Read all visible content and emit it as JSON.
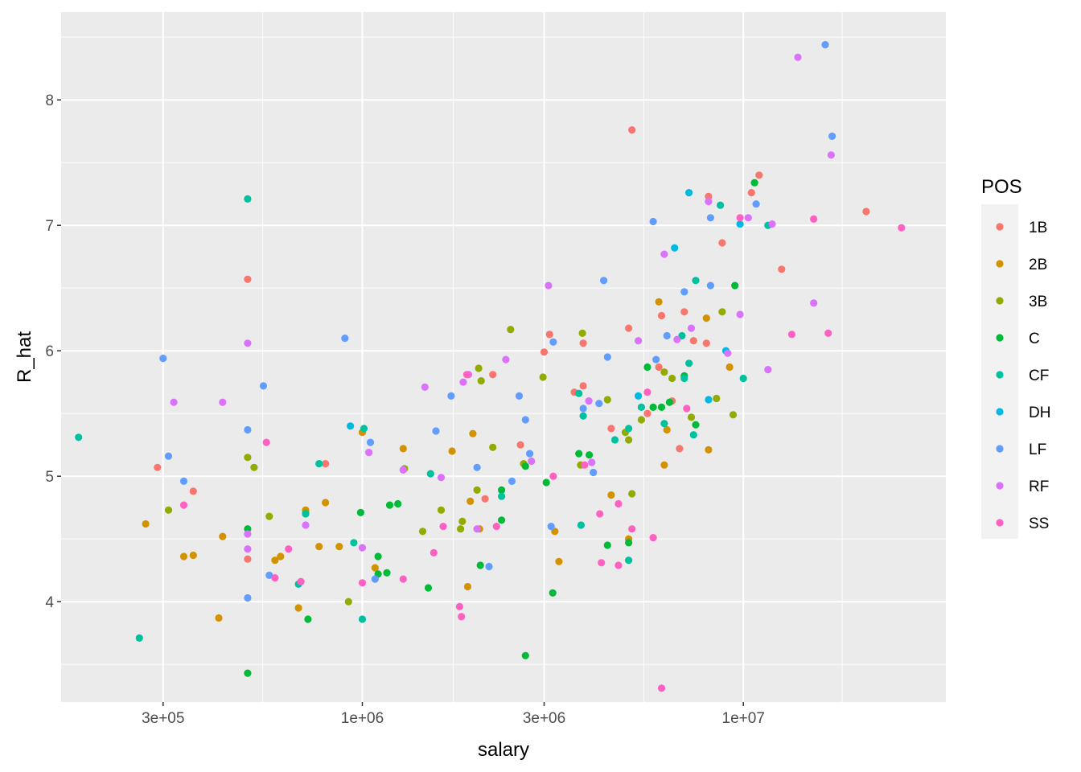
{
  "chart_data": {
    "type": "scatter",
    "title": "",
    "xlabel": "salary",
    "ylabel": "R_hat",
    "x_scale": "log10",
    "xlim": [
      162000,
      34000000
    ],
    "ylim": [
      3.2,
      8.7
    ],
    "x_ticks": [
      {
        "value": 300000,
        "label": "3e+05"
      },
      {
        "value": 1000000,
        "label": "1e+06"
      },
      {
        "value": 3000000,
        "label": "3e+06"
      },
      {
        "value": 10000000,
        "label": "1e+07"
      }
    ],
    "y_ticks": [
      {
        "value": 4,
        "label": "4"
      },
      {
        "value": 5,
        "label": "5"
      },
      {
        "value": 6,
        "label": "6"
      },
      {
        "value": 7,
        "label": "7"
      },
      {
        "value": 8,
        "label": "8"
      }
    ],
    "grid": true,
    "legend_title": "POS",
    "legend_position": "right",
    "series": [
      {
        "name": "1B",
        "color": "#F8766D",
        "points": [
          [
            290000,
            5.07
          ],
          [
            360000,
            4.88
          ],
          [
            500000,
            6.57
          ],
          [
            500000,
            4.34
          ],
          [
            800000,
            5.1
          ],
          [
            2100000,
            4.82
          ],
          [
            2200000,
            5.81
          ],
          [
            2600000,
            5.25
          ],
          [
            3000000,
            5.99
          ],
          [
            3100000,
            6.13
          ],
          [
            3600000,
            5.67
          ],
          [
            3800000,
            5.72
          ],
          [
            3800000,
            6.06
          ],
          [
            4500000,
            5.38
          ],
          [
            5000000,
            6.18
          ],
          [
            5100000,
            7.76
          ],
          [
            5600000,
            5.5
          ],
          [
            6000000,
            5.87
          ],
          [
            6100000,
            6.28
          ],
          [
            6500000,
            5.6
          ],
          [
            6800000,
            5.22
          ],
          [
            7000000,
            6.31
          ],
          [
            7400000,
            6.08
          ],
          [
            8000000,
            6.06
          ],
          [
            8100000,
            7.23
          ],
          [
            8800000,
            6.86
          ],
          [
            10500000,
            7.26
          ],
          [
            11000000,
            7.4
          ],
          [
            12600000,
            6.65
          ],
          [
            21000000,
            7.11
          ]
        ]
      },
      {
        "name": "2B",
        "color": "#D39200",
        "points": [
          [
            270000,
            4.62
          ],
          [
            340000,
            4.36
          ],
          [
            360000,
            4.37
          ],
          [
            420000,
            3.87
          ],
          [
            430000,
            4.52
          ],
          [
            590000,
            4.33
          ],
          [
            610000,
            4.36
          ],
          [
            680000,
            3.95
          ],
          [
            710000,
            4.73
          ],
          [
            770000,
            4.44
          ],
          [
            800000,
            4.79
          ],
          [
            870000,
            4.44
          ],
          [
            1000000,
            5.35
          ],
          [
            1080000,
            4.27
          ],
          [
            1280000,
            5.22
          ],
          [
            1720000,
            5.2
          ],
          [
            1890000,
            4.12
          ],
          [
            1920000,
            4.8
          ],
          [
            1950000,
            5.34
          ],
          [
            2030000,
            4.58
          ],
          [
            3200000,
            4.56
          ],
          [
            3280000,
            4.32
          ],
          [
            4500000,
            4.85
          ],
          [
            5000000,
            4.5
          ],
          [
            6000000,
            6.39
          ],
          [
            6200000,
            5.09
          ],
          [
            6300000,
            5.37
          ],
          [
            8000000,
            6.26
          ],
          [
            8100000,
            5.21
          ],
          [
            9200000,
            5.87
          ]
        ]
      },
      {
        "name": "3B",
        "color": "#93AA00",
        "points": [
          [
            310000,
            4.73
          ],
          [
            500000,
            5.15
          ],
          [
            520000,
            5.07
          ],
          [
            570000,
            4.68
          ],
          [
            710000,
            4.71
          ],
          [
            920000,
            4.0
          ],
          [
            1290000,
            5.06
          ],
          [
            1440000,
            4.56
          ],
          [
            1610000,
            4.73
          ],
          [
            1810000,
            4.58
          ],
          [
            1830000,
            4.64
          ],
          [
            2000000,
            4.89
          ],
          [
            2020000,
            5.86
          ],
          [
            2050000,
            5.76
          ],
          [
            2200000,
            5.23
          ],
          [
            2450000,
            6.17
          ],
          [
            2650000,
            5.1
          ],
          [
            2980000,
            5.79
          ],
          [
            3740000,
            5.09
          ],
          [
            3780000,
            6.14
          ],
          [
            4400000,
            5.61
          ],
          [
            4900000,
            5.35
          ],
          [
            5000000,
            5.29
          ],
          [
            5100000,
            4.86
          ],
          [
            5400000,
            5.45
          ],
          [
            6200000,
            5.83
          ],
          [
            6500000,
            5.78
          ],
          [
            7300000,
            5.47
          ],
          [
            8500000,
            5.62
          ],
          [
            8800000,
            6.31
          ],
          [
            9400000,
            5.49
          ]
        ]
      },
      {
        "name": "C",
        "color": "#00BA38",
        "points": [
          [
            500000,
            4.58
          ],
          [
            500000,
            3.43
          ],
          [
            720000,
            3.86
          ],
          [
            990000,
            4.71
          ],
          [
            1100000,
            4.22
          ],
          [
            1100000,
            4.36
          ],
          [
            1160000,
            4.23
          ],
          [
            1180000,
            4.77
          ],
          [
            1240000,
            4.78
          ],
          [
            1490000,
            4.11
          ],
          [
            2040000,
            4.29
          ],
          [
            2320000,
            4.65
          ],
          [
            2320000,
            4.89
          ],
          [
            2680000,
            5.08
          ],
          [
            2680000,
            3.57
          ],
          [
            3040000,
            4.95
          ],
          [
            3160000,
            4.07
          ],
          [
            3700000,
            5.18
          ],
          [
            3940000,
            5.17
          ],
          [
            4400000,
            4.45
          ],
          [
            5000000,
            4.47
          ],
          [
            5600000,
            5.87
          ],
          [
            5800000,
            5.55
          ],
          [
            6100000,
            5.55
          ],
          [
            6400000,
            5.59
          ],
          [
            7000000,
            5.8
          ],
          [
            7500000,
            5.41
          ],
          [
            9500000,
            6.52
          ],
          [
            10700000,
            7.34
          ]
        ]
      },
      {
        "name": "CF",
        "color": "#00C19F",
        "points": [
          [
            180000,
            5.31
          ],
          [
            260000,
            3.71
          ],
          [
            500000,
            7.21
          ],
          [
            680000,
            4.14
          ],
          [
            710000,
            4.7
          ],
          [
            770000,
            5.1
          ],
          [
            950000,
            4.47
          ],
          [
            1000000,
            3.86
          ],
          [
            1010000,
            5.38
          ],
          [
            1510000,
            5.02
          ],
          [
            2320000,
            4.84
          ],
          [
            3700000,
            5.66
          ],
          [
            3750000,
            4.61
          ],
          [
            3800000,
            5.48
          ],
          [
            4600000,
            5.29
          ],
          [
            5000000,
            5.38
          ],
          [
            5000000,
            4.33
          ],
          [
            5400000,
            5.55
          ],
          [
            6200000,
            5.42
          ],
          [
            6900000,
            6.12
          ],
          [
            7000000,
            5.78
          ],
          [
            7200000,
            5.9
          ],
          [
            7400000,
            5.33
          ],
          [
            7500000,
            6.56
          ],
          [
            8700000,
            7.16
          ],
          [
            10000000,
            5.78
          ],
          [
            11600000,
            7.0
          ]
        ]
      },
      {
        "name": "DH",
        "color": "#00B9E3",
        "points": [
          [
            930000,
            5.4
          ],
          [
            5300000,
            5.64
          ],
          [
            6600000,
            6.82
          ],
          [
            7200000,
            7.26
          ],
          [
            8100000,
            5.61
          ],
          [
            9000000,
            6.0
          ],
          [
            9800000,
            7.01
          ]
        ]
      },
      {
        "name": "LF",
        "color": "#619CFF",
        "points": [
          [
            300000,
            5.94
          ],
          [
            310000,
            5.16
          ],
          [
            340000,
            4.96
          ],
          [
            500000,
            5.37
          ],
          [
            500000,
            4.03
          ],
          [
            550000,
            5.72
          ],
          [
            570000,
            4.21
          ],
          [
            900000,
            6.1
          ],
          [
            1050000,
            5.27
          ],
          [
            1080000,
            4.18
          ],
          [
            1560000,
            5.36
          ],
          [
            1710000,
            5.64
          ],
          [
            2000000,
            5.07
          ],
          [
            2150000,
            4.28
          ],
          [
            2470000,
            4.96
          ],
          [
            2580000,
            5.64
          ],
          [
            2680000,
            5.45
          ],
          [
            2750000,
            5.18
          ],
          [
            3130000,
            4.6
          ],
          [
            3170000,
            6.07
          ],
          [
            3800000,
            5.54
          ],
          [
            4040000,
            5.03
          ],
          [
            4180000,
            5.58
          ],
          [
            4300000,
            6.56
          ],
          [
            4400000,
            5.95
          ],
          [
            5800000,
            7.03
          ],
          [
            5900000,
            5.93
          ],
          [
            6300000,
            6.12
          ],
          [
            7000000,
            6.47
          ],
          [
            8200000,
            6.52
          ],
          [
            8200000,
            7.06
          ],
          [
            10800000,
            7.17
          ],
          [
            16400000,
            8.44
          ],
          [
            17100000,
            7.71
          ]
        ]
      },
      {
        "name": "RF",
        "color": "#DB72FB",
        "points": [
          [
            320000,
            5.59
          ],
          [
            430000,
            5.59
          ],
          [
            500000,
            6.06
          ],
          [
            500000,
            4.54
          ],
          [
            500000,
            4.42
          ],
          [
            710000,
            4.61
          ],
          [
            1000000,
            4.43
          ],
          [
            1040000,
            5.19
          ],
          [
            1280000,
            5.05
          ],
          [
            1460000,
            5.71
          ],
          [
            1610000,
            4.99
          ],
          [
            1840000,
            5.75
          ],
          [
            1900000,
            5.81
          ],
          [
            2000000,
            4.58
          ],
          [
            2380000,
            5.93
          ],
          [
            2780000,
            5.12
          ],
          [
            3080000,
            6.52
          ],
          [
            3930000,
            5.6
          ],
          [
            4000000,
            5.11
          ],
          [
            5300000,
            6.08
          ],
          [
            6200000,
            6.77
          ],
          [
            6700000,
            6.09
          ],
          [
            7300000,
            6.18
          ],
          [
            8100000,
            7.19
          ],
          [
            9100000,
            5.98
          ],
          [
            9800000,
            6.29
          ],
          [
            10300000,
            7.06
          ],
          [
            11600000,
            5.85
          ],
          [
            11900000,
            7.01
          ],
          [
            13900000,
            8.34
          ],
          [
            15300000,
            6.38
          ],
          [
            17000000,
            7.56
          ]
        ]
      },
      {
        "name": "SS",
        "color": "#FF61C3",
        "points": [
          [
            340000,
            4.77
          ],
          [
            560000,
            5.27
          ],
          [
            590000,
            4.19
          ],
          [
            640000,
            4.42
          ],
          [
            690000,
            4.16
          ],
          [
            1000000,
            4.15
          ],
          [
            1280000,
            4.18
          ],
          [
            1540000,
            4.39
          ],
          [
            1630000,
            4.6
          ],
          [
            1800000,
            3.96
          ],
          [
            1820000,
            3.88
          ],
          [
            1880000,
            5.81
          ],
          [
            2250000,
            4.6
          ],
          [
            3170000,
            5.0
          ],
          [
            3830000,
            5.09
          ],
          [
            4200000,
            4.7
          ],
          [
            4240000,
            4.31
          ],
          [
            4700000,
            4.78
          ],
          [
            4700000,
            4.29
          ],
          [
            5100000,
            4.58
          ],
          [
            5600000,
            5.67
          ],
          [
            5800000,
            4.51
          ],
          [
            6100000,
            3.31
          ],
          [
            7100000,
            5.54
          ],
          [
            9800000,
            7.06
          ],
          [
            13400000,
            6.13
          ],
          [
            15300000,
            7.05
          ],
          [
            16700000,
            6.14
          ],
          [
            26000000,
            6.98
          ]
        ]
      }
    ]
  }
}
